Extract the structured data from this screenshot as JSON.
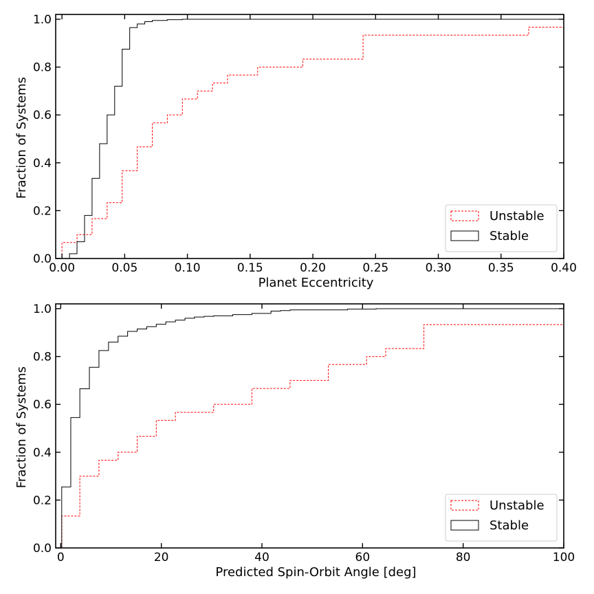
{
  "chart_data": [
    {
      "type": "line",
      "step": "cumulative-histogram",
      "xlabel": "Planet Eccentricity",
      "ylabel": "Fraction of Systems",
      "xlim": [
        -0.005,
        0.4
      ],
      "ylim": [
        0.0,
        1.02
      ],
      "xticks": [
        0.0,
        0.05,
        0.1,
        0.15,
        0.2,
        0.25,
        0.3,
        0.35,
        0.4
      ],
      "xtick_labels": [
        "0.00",
        "0.05",
        "0.10",
        "0.15",
        "0.20",
        "0.25",
        "0.30",
        "0.35",
        "0.40"
      ],
      "yticks": [
        0.0,
        0.2,
        0.4,
        0.6,
        0.8,
        1.0
      ],
      "ytick_labels": [
        "0.0",
        "0.2",
        "0.4",
        "0.6",
        "0.8",
        "1.0"
      ],
      "legend_position": "lower-right",
      "series": [
        {
          "name": "Unstable",
          "color": "#ff0000",
          "dash": "dashed",
          "x": [
            0.0,
            0.012,
            0.024,
            0.036,
            0.048,
            0.06,
            0.072,
            0.084,
            0.096,
            0.108,
            0.12,
            0.132,
            0.156,
            0.192,
            0.24,
            0.372
          ],
          "y": [
            0.0667,
            0.1,
            0.1667,
            0.2333,
            0.3667,
            0.4667,
            0.5667,
            0.6,
            0.6667,
            0.7,
            0.7333,
            0.7667,
            0.8,
            0.8333,
            0.9333,
            0.9667
          ]
        },
        {
          "name": "Stable",
          "color": "#000000",
          "dash": "solid",
          "x": [
            0.006,
            0.012,
            0.018,
            0.024,
            0.03,
            0.036,
            0.042,
            0.048,
            0.054,
            0.06,
            0.066,
            0.072,
            0.084,
            0.096,
            0.12
          ],
          "y": [
            0.02,
            0.07,
            0.18,
            0.335,
            0.48,
            0.6,
            0.72,
            0.875,
            0.965,
            0.98,
            0.99,
            0.995,
            0.998,
            1.0,
            1.0
          ]
        }
      ]
    },
    {
      "type": "line",
      "step": "cumulative-histogram",
      "xlabel": "Predicted Spin-Orbit Angle [deg]",
      "ylabel": "Fraction of Systems",
      "xlim": [
        -1,
        100
      ],
      "ylim": [
        0.0,
        1.02
      ],
      "xticks": [
        0,
        20,
        40,
        60,
        80,
        100
      ],
      "xtick_labels": [
        "0",
        "20",
        "40",
        "60",
        "80",
        "100"
      ],
      "yticks": [
        0.0,
        0.2,
        0.4,
        0.6,
        0.8,
        1.0
      ],
      "ytick_labels": [
        "0.0",
        "0.2",
        "0.4",
        "0.6",
        "0.8",
        "1.0"
      ],
      "legend_position": "lower-right",
      "series": [
        {
          "name": "Unstable",
          "color": "#ff0000",
          "dash": "dashed",
          "x": [
            0.2,
            3.8,
            7.6,
            11.4,
            15.2,
            19.0,
            22.8,
            30.4,
            38.0,
            45.6,
            53.2,
            60.8,
            64.6,
            72.2
          ],
          "y": [
            0.1333,
            0.3,
            0.3667,
            0.4,
            0.4667,
            0.5333,
            0.5667,
            0.6,
            0.6667,
            0.7,
            0.7667,
            0.8,
            0.8333,
            0.9333
          ]
        },
        {
          "name": "Stable",
          "color": "#000000",
          "dash": "solid",
          "x": [
            0.0,
            0.2,
            2.0,
            3.8,
            5.7,
            7.6,
            9.5,
            11.4,
            13.3,
            15.2,
            17.1,
            19.0,
            20.9,
            22.8,
            24.7,
            26.6,
            28.5,
            30.4,
            34.2,
            38.0,
            41.8,
            43.7,
            45.6,
            57.0,
            62.7
          ],
          "y": [
            0.0,
            0.255,
            0.545,
            0.665,
            0.755,
            0.825,
            0.86,
            0.885,
            0.905,
            0.915,
            0.925,
            0.935,
            0.945,
            0.952,
            0.96,
            0.965,
            0.968,
            0.97,
            0.975,
            0.98,
            0.99,
            0.992,
            0.995,
            0.998,
            1.0
          ]
        }
      ]
    }
  ]
}
